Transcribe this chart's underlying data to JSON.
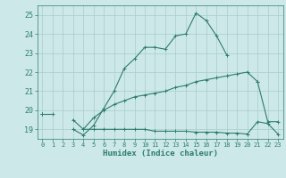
{
  "xlabel": "Humidex (Indice chaleur)",
  "x": [
    0,
    1,
    2,
    3,
    4,
    5,
    6,
    7,
    8,
    9,
    10,
    11,
    12,
    13,
    14,
    15,
    16,
    17,
    18,
    19,
    20,
    21,
    22,
    23
  ],
  "line1": [
    19.8,
    19.8,
    null,
    19.0,
    18.7,
    19.2,
    20.1,
    21.0,
    22.2,
    22.7,
    23.3,
    23.3,
    23.2,
    23.9,
    24.0,
    25.1,
    24.7,
    23.9,
    22.9,
    null,
    null,
    21.5,
    null,
    null
  ],
  "line2": [
    19.8,
    null,
    null,
    19.5,
    19.0,
    19.6,
    20.0,
    20.3,
    20.5,
    20.7,
    20.8,
    20.9,
    21.0,
    21.2,
    21.3,
    21.5,
    21.6,
    21.7,
    21.8,
    21.9,
    22.0,
    21.5,
    19.4,
    19.4
  ],
  "line3": [
    19.8,
    null,
    null,
    null,
    19.0,
    19.0,
    19.0,
    19.0,
    19.0,
    19.0,
    19.0,
    18.9,
    18.9,
    18.9,
    18.9,
    18.85,
    18.85,
    18.85,
    18.8,
    18.8,
    18.75,
    19.4,
    19.3,
    18.75
  ],
  "color": "#2e7d6e",
  "bg_color": "#cce8e8",
  "grid_color": "#aacccc",
  "ylim": [
    18.5,
    25.5
  ],
  "yticks": [
    19,
    20,
    21,
    22,
    23,
    24,
    25
  ],
  "xticks": [
    0,
    1,
    2,
    3,
    4,
    5,
    6,
    7,
    8,
    9,
    10,
    11,
    12,
    13,
    14,
    15,
    16,
    17,
    18,
    19,
    20,
    21,
    22,
    23
  ]
}
